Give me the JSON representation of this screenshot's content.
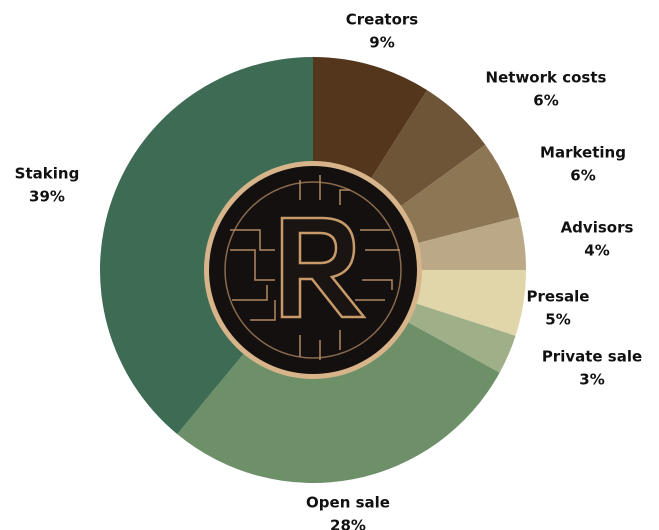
{
  "chart_data": {
    "type": "pie",
    "categories": [
      "Creators",
      "Network costs",
      "Marketing",
      "Advisors",
      "Presale",
      "Private sale",
      "Open sale",
      "Staking"
    ],
    "values": [
      9,
      6,
      6,
      4,
      5,
      3,
      28,
      39
    ],
    "value_labels": [
      "9%",
      "6%",
      "6%",
      "4%",
      "5%",
      "3%",
      "28%",
      "39%"
    ],
    "colors": [
      "#54361c",
      "#6e5537",
      "#8d7653",
      "#bba887",
      "#e0d6aa",
      "#9fb088",
      "#6e9069",
      "#3e6b54"
    ]
  }
}
